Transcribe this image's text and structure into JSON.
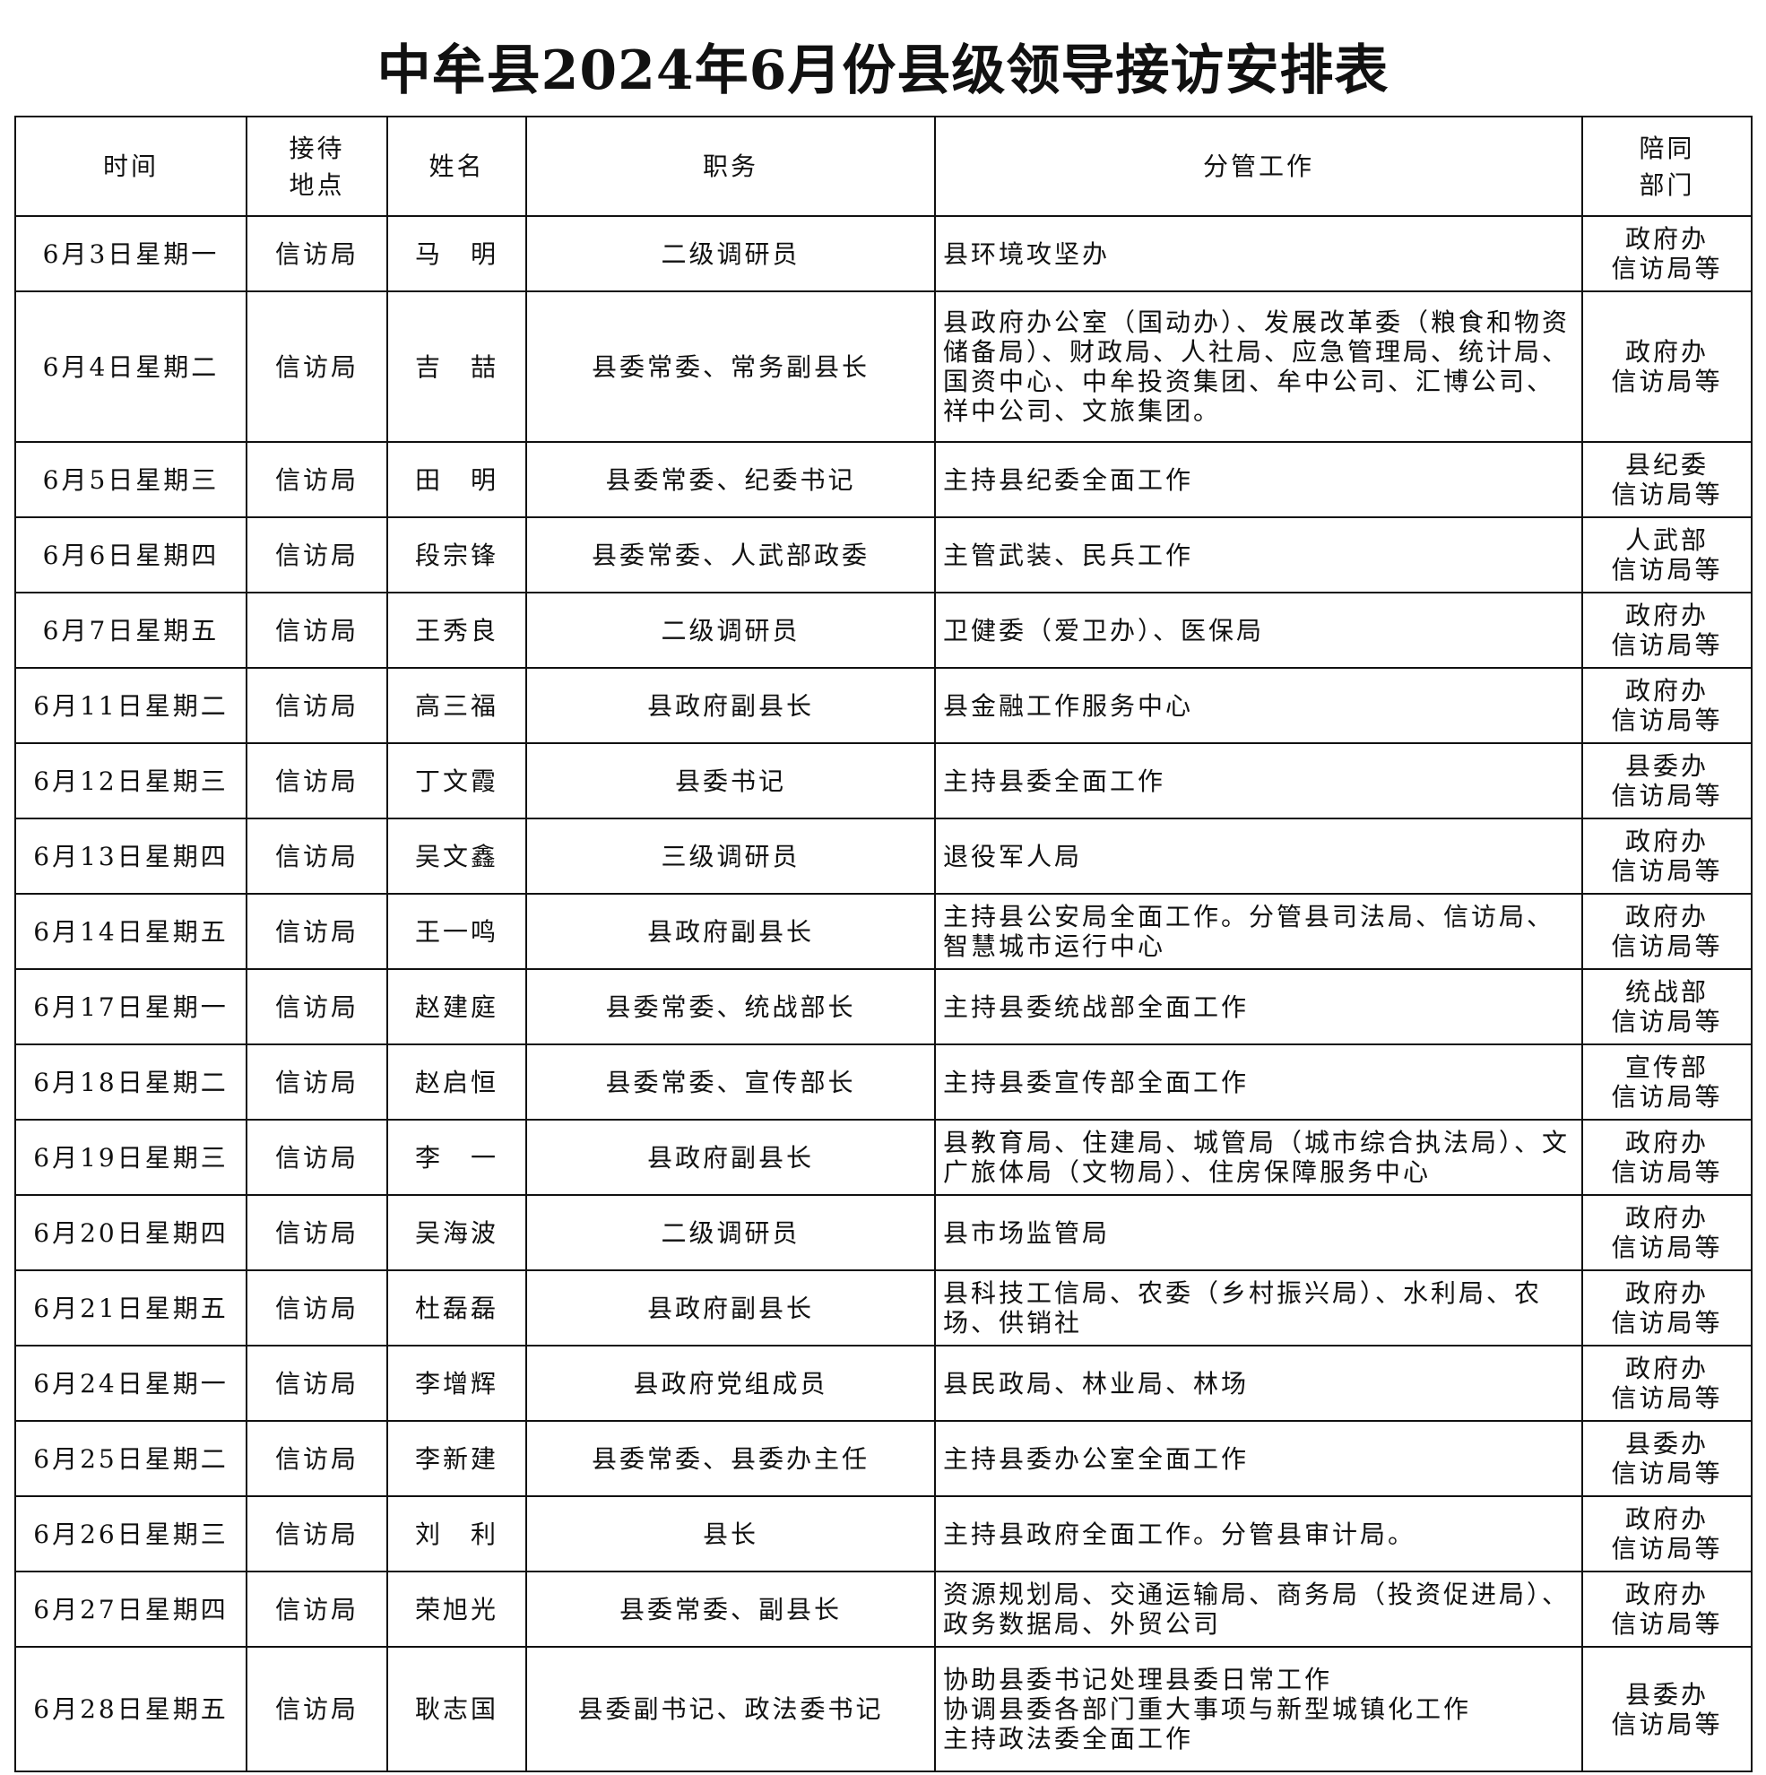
{
  "title": "中牟县2024年6月份县级领导接访安排表",
  "headers": [
    "时间",
    "接待\n地点",
    "姓名",
    "职务",
    "分管工作",
    "陪同\n部门"
  ],
  "rows": [
    {
      "date": "6月3日星期一",
      "place": "信访局",
      "name": "马　明",
      "title": "二级调研员",
      "work": "县环境攻坚办",
      "dept": "政府办\n信访局等"
    },
    {
      "date": "6月4日星期二",
      "place": "信访局",
      "name": "吉　喆",
      "title": "县委常委、常务副县长",
      "work": "县政府办公室（国动办）、发展改革委（粮食和物资储备局）、财政局、人社局、应急管理局、统计局、国资中心、中牟投资集团、牟中公司、汇博公司、祥中公司、文旅集团。",
      "dept": "政府办\n信访局等"
    },
    {
      "date": "6月5日星期三",
      "place": "信访局",
      "name": "田　明",
      "title": "县委常委、纪委书记",
      "work": "主持县纪委全面工作",
      "dept": "县纪委\n信访局等"
    },
    {
      "date": "6月6日星期四",
      "place": "信访局",
      "name": "段宗锋",
      "title": "县委常委、人武部政委",
      "work": "主管武装、民兵工作",
      "dept": "人武部\n信访局等"
    },
    {
      "date": "6月7日星期五",
      "place": "信访局",
      "name": "王秀良",
      "title": "二级调研员",
      "work": "卫健委（爱卫办）、医保局",
      "dept": "政府办\n信访局等"
    },
    {
      "date": "6月11日星期二",
      "place": "信访局",
      "name": "高三福",
      "title": "县政府副县长",
      "work": "县金融工作服务中心",
      "dept": "政府办\n信访局等"
    },
    {
      "date": "6月12日星期三",
      "place": "信访局",
      "name": "丁文霞",
      "title": "县委书记",
      "work": "主持县委全面工作",
      "dept": "县委办\n信访局等"
    },
    {
      "date": "6月13日星期四",
      "place": "信访局",
      "name": "吴文鑫",
      "title": "三级调研员",
      "work": "退役军人局",
      "dept": "政府办\n信访局等"
    },
    {
      "date": "6月14日星期五",
      "place": "信访局",
      "name": "王一鸣",
      "title": "县政府副县长",
      "work": "主持县公安局全面工作。分管县司法局、信访局、智慧城市运行中心",
      "dept": "政府办\n信访局等"
    },
    {
      "date": "6月17日星期一",
      "place": "信访局",
      "name": "赵建庭",
      "title": "县委常委、统战部长",
      "work": "主持县委统战部全面工作",
      "dept": "统战部\n信访局等"
    },
    {
      "date": "6月18日星期二",
      "place": "信访局",
      "name": "赵启恒",
      "title": "县委常委、宣传部长",
      "work": "主持县委宣传部全面工作",
      "dept": "宣传部\n信访局等"
    },
    {
      "date": "6月19日星期三",
      "place": "信访局",
      "name": "李　一",
      "title": "县政府副县长",
      "work": "县教育局、住建局、城管局（城市综合执法局）、文广旅体局（文物局）、住房保障服务中心",
      "dept": "政府办\n信访局等"
    },
    {
      "date": "6月20日星期四",
      "place": "信访局",
      "name": "吴海波",
      "title": "二级调研员",
      "work": "县市场监管局",
      "dept": "政府办\n信访局等"
    },
    {
      "date": "6月21日星期五",
      "place": "信访局",
      "name": "杜磊磊",
      "title": "县政府副县长",
      "work": "县科技工信局、农委（乡村振兴局）、水利局、农场、供销社",
      "dept": "政府办\n信访局等"
    },
    {
      "date": "6月24日星期一",
      "place": "信访局",
      "name": "李增辉",
      "title": "县政府党组成员",
      "work": "县民政局、林业局、林场",
      "dept": "政府办\n信访局等"
    },
    {
      "date": "6月25日星期二",
      "place": "信访局",
      "name": "李新建",
      "title": "县委常委、县委办主任",
      "work": "主持县委办公室全面工作",
      "dept": "县委办\n信访局等"
    },
    {
      "date": "6月26日星期三",
      "place": "信访局",
      "name": "刘　利",
      "title": "县长",
      "work": "主持县政府全面工作。分管县审计局。",
      "dept": "政府办\n信访局等"
    },
    {
      "date": "6月27日星期四",
      "place": "信访局",
      "name": "荣旭光",
      "title": "县委常委、副县长",
      "work": "资源规划局、交通运输局、商务局（投资促进局）、政务数据局、外贸公司",
      "dept": "政府办\n信访局等"
    },
    {
      "date": "6月28日星期五",
      "place": "信访局",
      "name": "耿志国",
      "title": "县委副书记、政法委书记",
      "work": "协助县委书记处理县委日常工作\n协调县委各部门重大事项与新型城镇化工作\n主持政法委全面工作",
      "dept": "县委办\n信访局等"
    }
  ]
}
